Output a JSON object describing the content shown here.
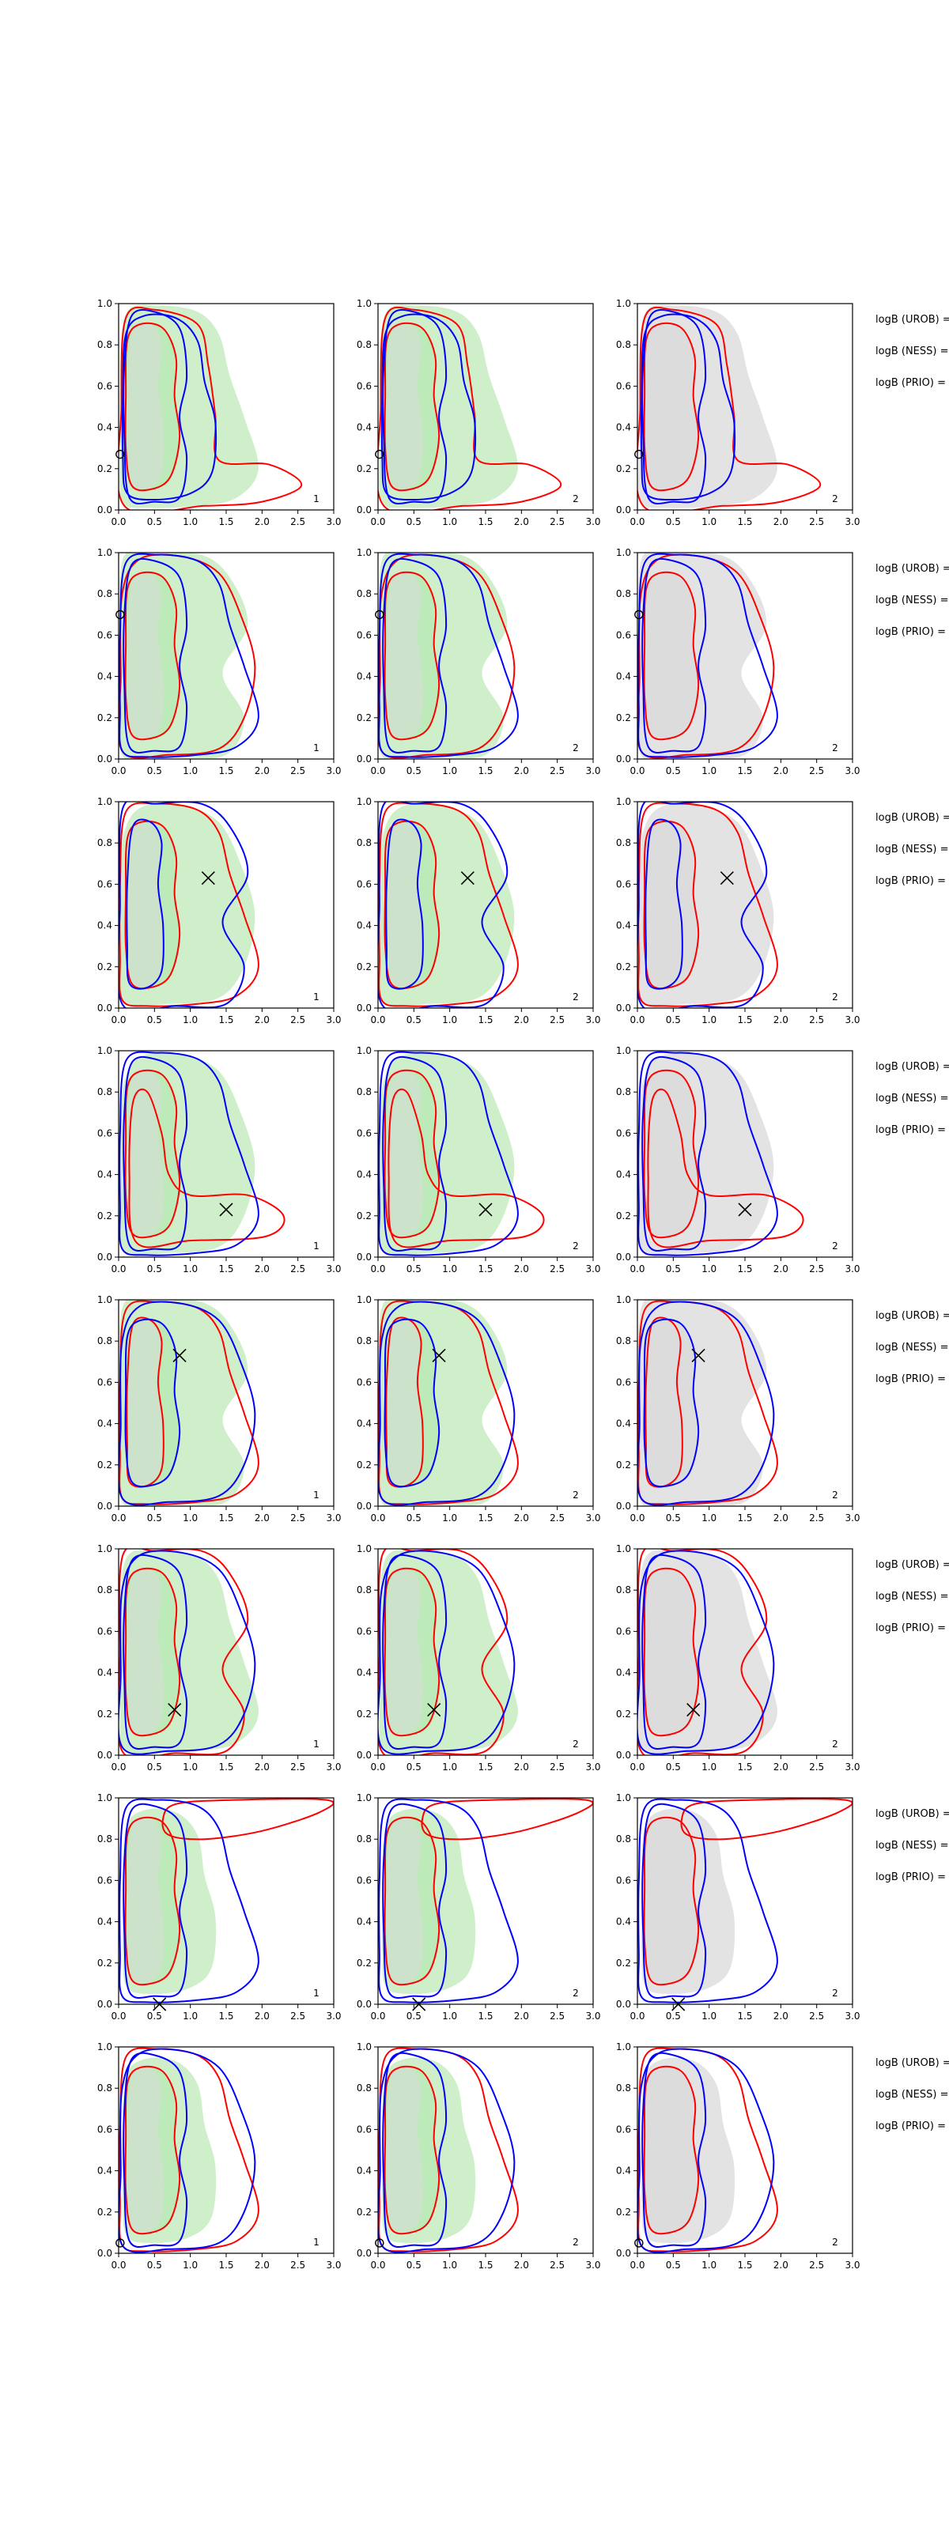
{
  "figure": {
    "side_labels": [
      "logB (UROB) =",
      "logB (NESS) =",
      "logB (PRIO) ="
    ],
    "panel_tags": [
      "1",
      "2",
      "2"
    ]
  },
  "colors": {
    "green_fill": "#b9e8b4",
    "grey_fill": "#dadada",
    "red": "#ff0000",
    "blue": "#0000ff",
    "marker": "#000000"
  },
  "chart_data": {
    "type": "contour-grid",
    "rows": 8,
    "cols": 3,
    "xlim": [
      0.0,
      3.0
    ],
    "ylim": [
      0.0,
      1.0
    ],
    "xticks": [
      "0.0",
      "0.5",
      "1.0",
      "1.5",
      "2.0",
      "2.5",
      "3.0"
    ],
    "yticks": [
      "0.0",
      "0.2",
      "0.4",
      "0.6",
      "0.8",
      "1.0"
    ],
    "grid": false,
    "markers": [
      {
        "row": 1,
        "x": 0.02,
        "y": 0.27,
        "symbol": "o"
      },
      {
        "row": 2,
        "x": 0.02,
        "y": 0.7,
        "symbol": "o"
      },
      {
        "row": 3,
        "x": 1.25,
        "y": 0.63,
        "symbol": "x"
      },
      {
        "row": 4,
        "x": 1.5,
        "y": 0.23,
        "symbol": "x"
      },
      {
        "row": 5,
        "x": 0.85,
        "y": 0.73,
        "symbol": "x"
      },
      {
        "row": 6,
        "x": 0.78,
        "y": 0.22,
        "symbol": "x"
      },
      {
        "row": 7,
        "x": 0.57,
        "y": 0.0,
        "symbol": "x"
      },
      {
        "row": 8,
        "x": 0.02,
        "y": 0.05,
        "symbol": "o"
      }
    ]
  }
}
